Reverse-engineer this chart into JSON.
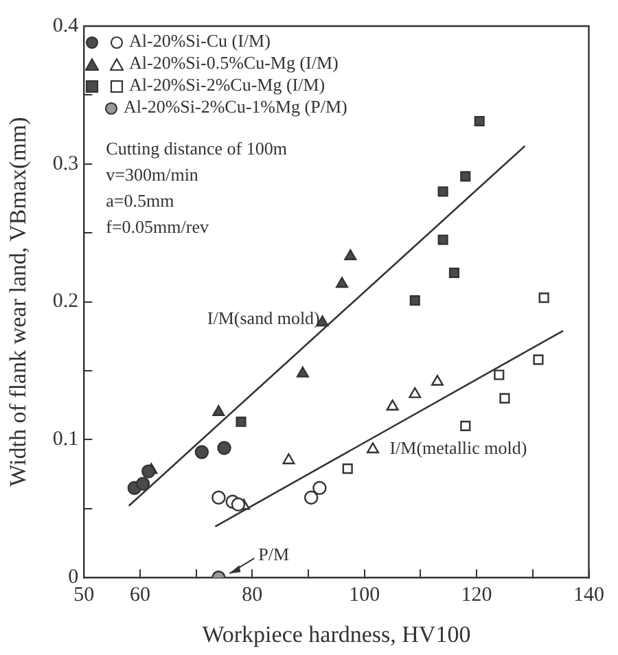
{
  "chart_data": {
    "type": "scatter",
    "xlabel": "Workpiece hardness, HV100",
    "ylabel": "Width of flank wear land, VBmax(mm)",
    "xlim": [
      50,
      140
    ],
    "xticks": [
      50,
      60,
      {
        "value": 70,
        "label": null
      },
      80,
      {
        "value": 90,
        "label": null
      },
      100,
      {
        "value": 110,
        "label": null
      },
      120,
      {
        "value": 130,
        "label": null
      },
      140
    ],
    "ylim": [
      0,
      0.4
    ],
    "yticks": [
      0,
      {
        "value": 0.05,
        "label": null
      },
      0.1,
      {
        "value": 0.15,
        "label": null
      },
      0.2,
      {
        "value": 0.25,
        "label": null
      },
      0.3,
      {
        "value": 0.35,
        "label": null
      },
      0.4
    ],
    "grid": false,
    "legend": "top left",
    "series": [
      {
        "marker": "circle",
        "color": "#4a4a4a",
        "x": [
          59,
          60.5,
          61.5,
          71,
          75
        ],
        "values": [
          0.065,
          0.068,
          0.077,
          0.091,
          0.094
        ]
      },
      {
        "name": "Al-20%Si-Cu (I/M)",
        "marker": "circle",
        "color": "#ffffff",
        "x": [
          74,
          76.5,
          77.5,
          90.5,
          92
        ],
        "values": [
          0.058,
          0.055,
          0.053,
          0.058,
          0.065
        ]
      },
      {
        "marker": "triangle",
        "color": "#4a4a4a",
        "x": [
          62,
          74,
          89,
          92.5,
          96,
          97.5
        ],
        "values": [
          0.078,
          0.12,
          0.148,
          0.185,
          0.213,
          0.233
        ]
      },
      {
        "name": "Al-20%Si-0.5%Cu-Mg (I/M)",
        "marker": "triangle",
        "color": "#ffffff",
        "x": [
          78.5,
          86.5,
          101.5,
          105,
          109,
          113
        ],
        "values": [
          0.052,
          0.085,
          0.093,
          0.124,
          0.133,
          0.142
        ]
      },
      {
        "marker": "square",
        "color": "#4a4a4a",
        "x": [
          78,
          109,
          114,
          114,
          116,
          118,
          120.5
        ],
        "values": [
          0.113,
          0.201,
          0.245,
          0.28,
          0.221,
          0.291,
          0.331
        ]
      },
      {
        "name": "Al-20%Si-2%Cu-Mg (I/M)",
        "marker": "square",
        "color": "#ffffff",
        "x": [
          97,
          118,
          124,
          125,
          131,
          132
        ],
        "values": [
          0.079,
          0.11,
          0.147,
          0.13,
          0.158,
          0.203
        ]
      },
      {
        "name": "Al-20%Si-2%Cu-1%Mg (P/M)",
        "marker": "circle",
        "color": "#9a9a9a",
        "x": [
          74
        ],
        "values": [
          0
        ]
      },
      {
        "type": "line",
        "name": "I/M(sand mold)",
        "marker": "none",
        "color": "#333333",
        "x": [
          58,
          128.6
        ],
        "values": [
          0.052,
          0.313
        ]
      },
      {
        "type": "line",
        "name": "I/M(metallic mold)",
        "marker": "none",
        "color": "#333333",
        "x": [
          73.4,
          135.4
        ],
        "values": [
          0.037,
          0.179
        ]
      }
    ],
    "annotations": [
      "Cutting distance of 100m",
      "v=300m/min",
      "a=0.5mm",
      "f=0.05mm/rev",
      {
        "text": "P/M",
        "x": 74,
        "y": 0
      }
    ]
  }
}
